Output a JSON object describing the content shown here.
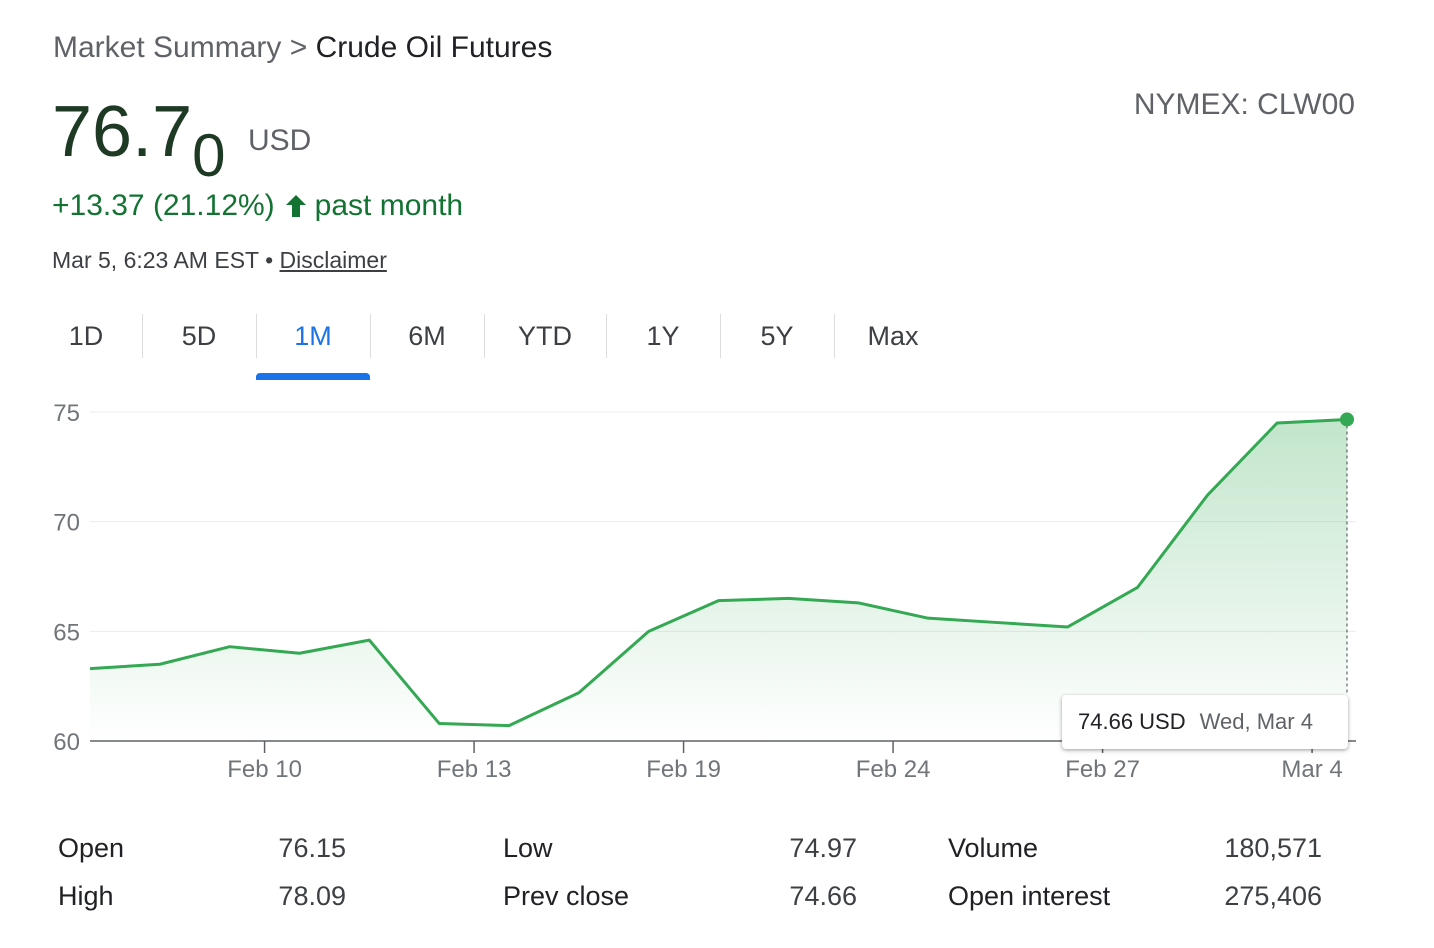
{
  "breadcrumb": {
    "parent": "Market Summary",
    "separator": ">",
    "current": "Crude Oil Futures"
  },
  "price": {
    "main": "76.7",
    "last_digit": "0",
    "currency": "USD"
  },
  "ticker": "NYMEX: CLW00",
  "change": {
    "amount": "+13.37",
    "percent": "(21.12%)",
    "direction_icon": "arrow-up-icon",
    "period": "past month",
    "color": "#137333"
  },
  "timestamp": {
    "text": "Mar 5, 6:23 AM EST",
    "bullet": "•",
    "disclaimer": "Disclaimer"
  },
  "tabs": [
    {
      "label": "1D",
      "active": false
    },
    {
      "label": "5D",
      "active": false
    },
    {
      "label": "1M",
      "active": true
    },
    {
      "label": "6M",
      "active": false
    },
    {
      "label": "YTD",
      "active": false
    },
    {
      "label": "1Y",
      "active": false
    },
    {
      "label": "5Y",
      "active": false
    },
    {
      "label": "Max",
      "active": false
    }
  ],
  "accent_color": "#1a73e8",
  "chart_data": {
    "type": "area",
    "title": "",
    "xlabel": "",
    "ylabel": "",
    "ylim": [
      60,
      75
    ],
    "yticks": [
      60,
      65,
      70,
      75
    ],
    "grid": true,
    "line_color": "#34a853",
    "x_tick_labels": [
      {
        "label": "Feb 10",
        "index": 2.5
      },
      {
        "label": "Feb 13",
        "index": 5.5
      },
      {
        "label": "Feb 19",
        "index": 8.5
      },
      {
        "label": "Feb 24",
        "index": 11.5
      },
      {
        "label": "Feb 27",
        "index": 14.5
      },
      {
        "label": "Mar 4",
        "index": 17.5
      }
    ],
    "series": [
      {
        "values": [
          63.3,
          63.5,
          64.3,
          64.0,
          64.6,
          60.8,
          60.7,
          62.2,
          65.0,
          66.4,
          66.5,
          66.3,
          65.6,
          65.4,
          65.2,
          67.0,
          71.2,
          74.5,
          74.66
        ]
      }
    ],
    "tooltip": {
      "value": "74.66 USD",
      "date": "Wed, Mar 4"
    }
  },
  "stats": [
    {
      "label": "Open",
      "value": "76.15"
    },
    {
      "label": "High",
      "value": "78.09"
    },
    {
      "label": "Low",
      "value": "74.97"
    },
    {
      "label": "Prev close",
      "value": "74.66"
    },
    {
      "label": "Volume",
      "value": "180,571"
    },
    {
      "label": "Open interest",
      "value": "275,406"
    }
  ]
}
